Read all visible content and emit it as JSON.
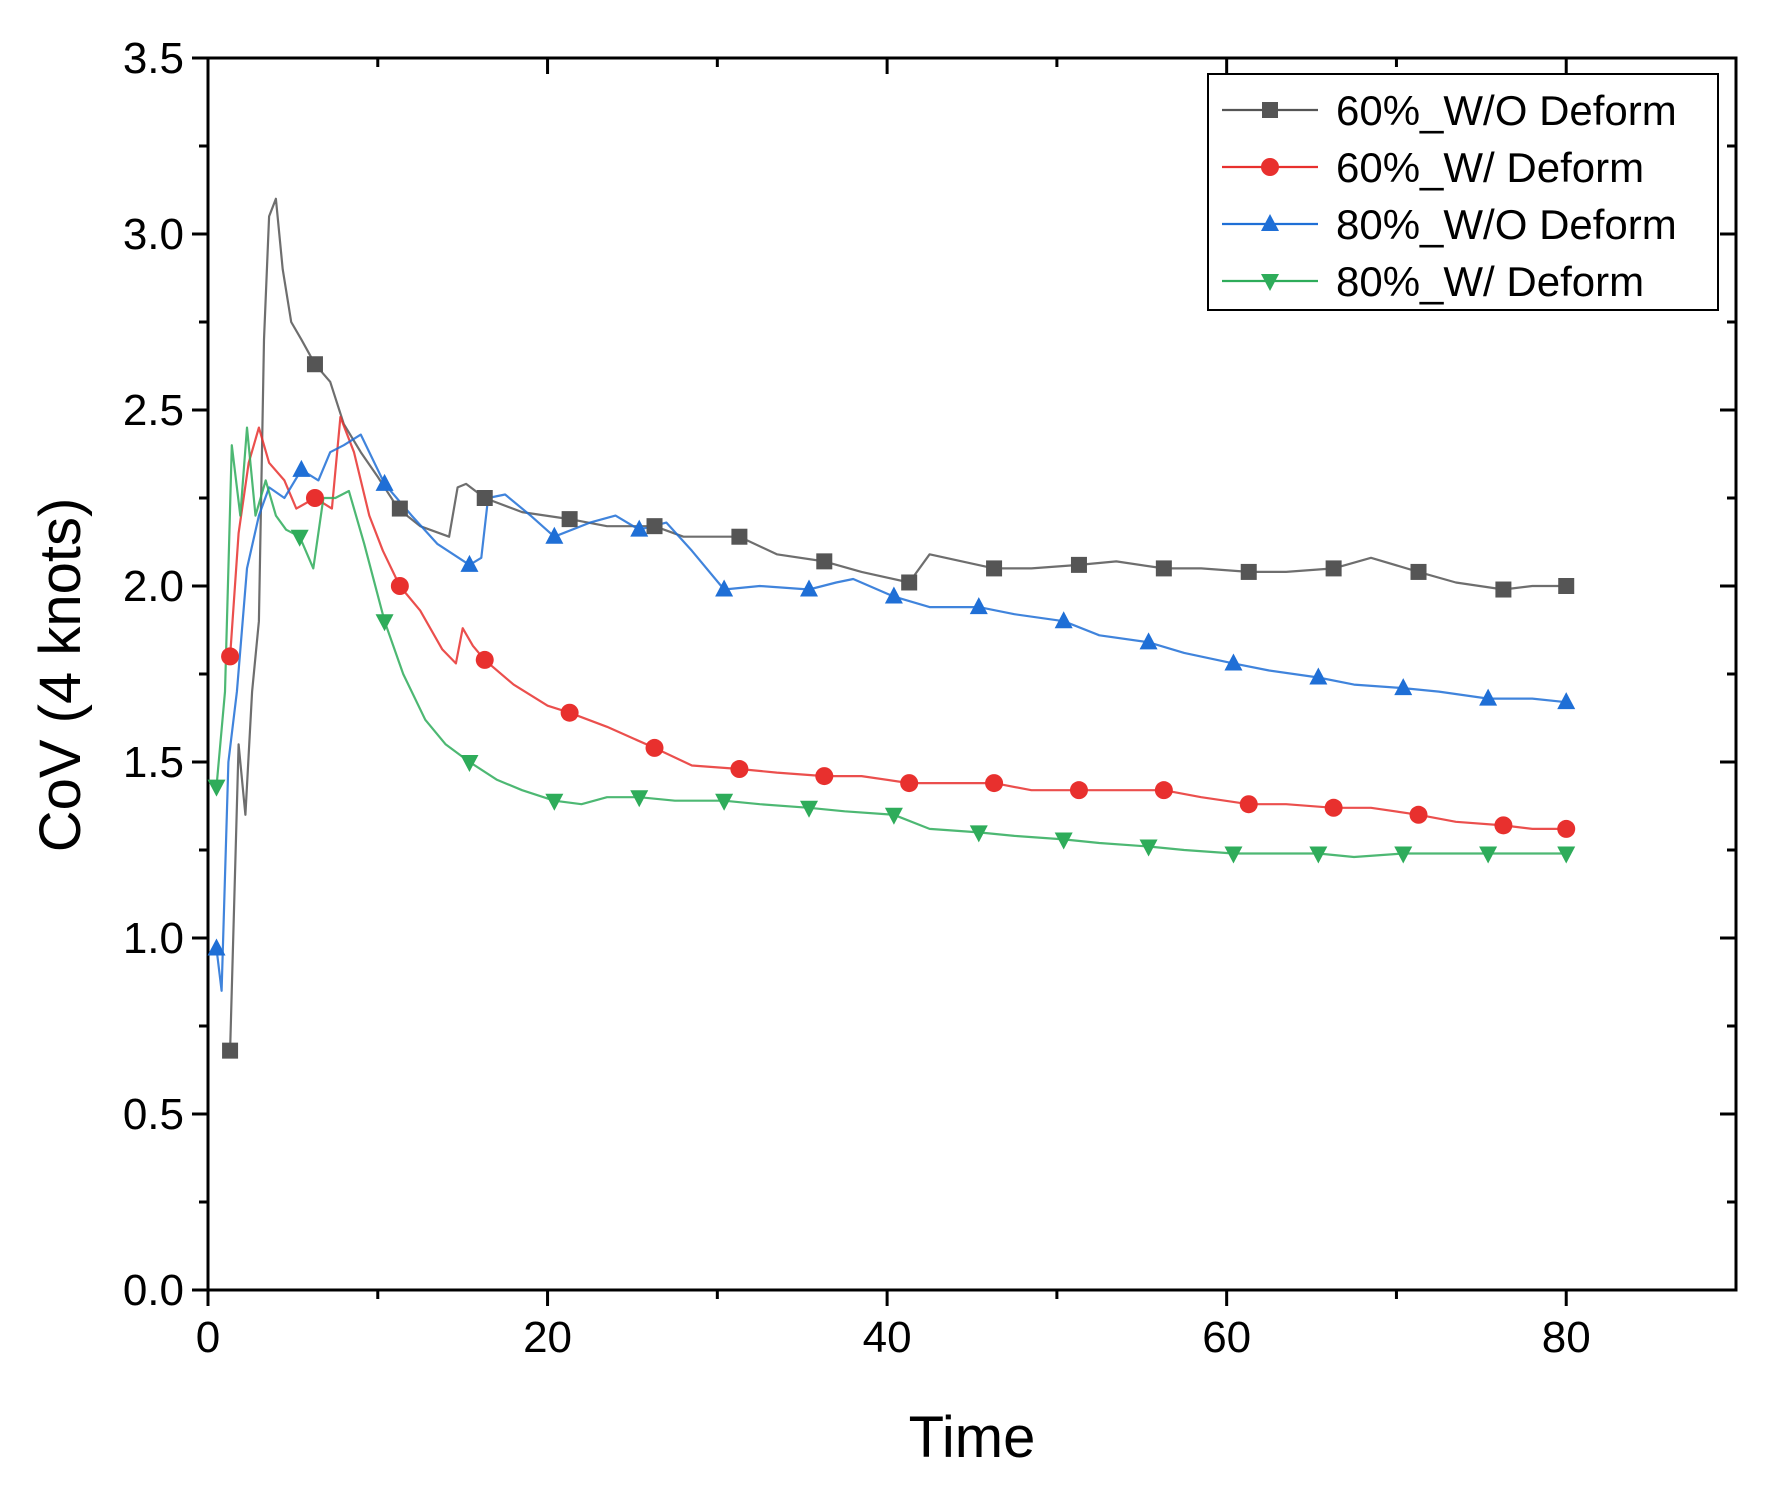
{
  "chart_data": {
    "type": "line",
    "title": "",
    "xlabel": "Time",
    "ylabel": "CoV (4 knots)",
    "xlim": [
      0,
      90
    ],
    "ylim": [
      0,
      3.5
    ],
    "x_ticks": [
      0,
      20,
      40,
      60,
      80
    ],
    "x_tick_labels": [
      "0",
      "20",
      "40",
      "60",
      "80"
    ],
    "y_ticks": [
      0,
      0.5,
      1.0,
      1.5,
      2.0,
      2.5,
      3.0,
      3.5
    ],
    "y_tick_labels": [
      "0.0",
      "0.5",
      "1.0",
      "1.5",
      "2.0",
      "2.5",
      "3.0",
      "3.5"
    ],
    "grid": false,
    "legend_position": "top-right",
    "series": [
      {
        "name": "60%_W/O Deform",
        "color": "#555555",
        "marker": "square",
        "line": [
          [
            1.3,
            0.68
          ],
          [
            1.8,
            1.55
          ],
          [
            2.2,
            1.35
          ],
          [
            2.6,
            1.7
          ],
          [
            3.0,
            1.9
          ],
          [
            3.3,
            2.7
          ],
          [
            3.6,
            3.05
          ],
          [
            4.0,
            3.1
          ],
          [
            4.4,
            2.9
          ],
          [
            4.9,
            2.75
          ],
          [
            5.5,
            2.7
          ],
          [
            6.3,
            2.63
          ],
          [
            7.2,
            2.58
          ],
          [
            8.0,
            2.46
          ],
          [
            9.0,
            2.38
          ],
          [
            10.0,
            2.31
          ],
          [
            11.2,
            2.22
          ],
          [
            12.5,
            2.17
          ],
          [
            14.2,
            2.14
          ],
          [
            14.7,
            2.28
          ],
          [
            15.2,
            2.29
          ],
          [
            16.3,
            2.25
          ],
          [
            18.5,
            2.21
          ],
          [
            21.3,
            2.19
          ],
          [
            23.5,
            2.17
          ],
          [
            26.3,
            2.17
          ],
          [
            28.0,
            2.14
          ],
          [
            31.3,
            2.14
          ],
          [
            33.5,
            2.09
          ],
          [
            36.3,
            2.07
          ],
          [
            38.5,
            2.04
          ],
          [
            41.3,
            2.01
          ],
          [
            42.5,
            2.09
          ],
          [
            46.3,
            2.05
          ],
          [
            48.5,
            2.05
          ],
          [
            51.3,
            2.06
          ],
          [
            53.5,
            2.07
          ],
          [
            56.3,
            2.05
          ],
          [
            58.5,
            2.05
          ],
          [
            61.3,
            2.04
          ],
          [
            63.5,
            2.04
          ],
          [
            66.3,
            2.05
          ],
          [
            68.5,
            2.08
          ],
          [
            71.3,
            2.04
          ],
          [
            73.5,
            2.01
          ],
          [
            76.3,
            1.99
          ],
          [
            78.0,
            2.0
          ],
          [
            80.0,
            2.0
          ]
        ],
        "markers": [
          [
            1.3,
            0.68
          ],
          [
            6.3,
            2.63
          ],
          [
            11.3,
            2.22
          ],
          [
            16.3,
            2.25
          ],
          [
            21.3,
            2.19
          ],
          [
            26.3,
            2.17
          ],
          [
            31.3,
            2.14
          ],
          [
            36.3,
            2.07
          ],
          [
            41.3,
            2.01
          ],
          [
            46.3,
            2.05
          ],
          [
            51.3,
            2.06
          ],
          [
            56.3,
            2.05
          ],
          [
            61.3,
            2.04
          ],
          [
            66.3,
            2.05
          ],
          [
            71.3,
            2.04
          ],
          [
            76.3,
            1.99
          ],
          [
            80.0,
            2.0
          ]
        ]
      },
      {
        "name": "60%_W/ Deform",
        "color": "#e8302e",
        "marker": "circle",
        "line": [
          [
            1.3,
            1.8
          ],
          [
            1.8,
            2.15
          ],
          [
            2.4,
            2.35
          ],
          [
            3.0,
            2.45
          ],
          [
            3.6,
            2.35
          ],
          [
            4.5,
            2.3
          ],
          [
            5.2,
            2.22
          ],
          [
            6.3,
            2.25
          ],
          [
            7.3,
            2.22
          ],
          [
            7.8,
            2.48
          ],
          [
            8.6,
            2.38
          ],
          [
            9.5,
            2.2
          ],
          [
            10.3,
            2.1
          ],
          [
            11.3,
            2.0
          ],
          [
            12.5,
            1.93
          ],
          [
            13.8,
            1.82
          ],
          [
            14.6,
            1.78
          ],
          [
            15.0,
            1.88
          ],
          [
            15.6,
            1.83
          ],
          [
            16.3,
            1.79
          ],
          [
            18.0,
            1.72
          ],
          [
            20.0,
            1.66
          ],
          [
            21.3,
            1.64
          ],
          [
            23.5,
            1.6
          ],
          [
            26.3,
            1.54
          ],
          [
            28.5,
            1.49
          ],
          [
            31.3,
            1.48
          ],
          [
            33.5,
            1.47
          ],
          [
            36.3,
            1.46
          ],
          [
            38.5,
            1.46
          ],
          [
            41.3,
            1.44
          ],
          [
            43.5,
            1.44
          ],
          [
            46.3,
            1.44
          ],
          [
            48.5,
            1.42
          ],
          [
            51.3,
            1.42
          ],
          [
            53.5,
            1.42
          ],
          [
            56.3,
            1.42
          ],
          [
            58.5,
            1.4
          ],
          [
            61.3,
            1.38
          ],
          [
            63.5,
            1.38
          ],
          [
            66.3,
            1.37
          ],
          [
            68.5,
            1.37
          ],
          [
            71.3,
            1.35
          ],
          [
            73.5,
            1.33
          ],
          [
            76.3,
            1.32
          ],
          [
            78.0,
            1.31
          ],
          [
            80.0,
            1.31
          ]
        ],
        "markers": [
          [
            1.3,
            1.8
          ],
          [
            6.3,
            2.25
          ],
          [
            11.3,
            2.0
          ],
          [
            16.3,
            1.79
          ],
          [
            21.3,
            1.64
          ],
          [
            26.3,
            1.54
          ],
          [
            31.3,
            1.48
          ],
          [
            36.3,
            1.46
          ],
          [
            41.3,
            1.44
          ],
          [
            46.3,
            1.44
          ],
          [
            51.3,
            1.42
          ],
          [
            56.3,
            1.42
          ],
          [
            61.3,
            1.38
          ],
          [
            66.3,
            1.37
          ],
          [
            71.3,
            1.35
          ],
          [
            76.3,
            1.32
          ],
          [
            80.0,
            1.31
          ]
        ]
      },
      {
        "name": "80%_W/O Deform",
        "color": "#1f6fd6",
        "marker": "triangle-up",
        "line": [
          [
            0.5,
            0.97
          ],
          [
            0.8,
            0.85
          ],
          [
            1.2,
            1.5
          ],
          [
            1.7,
            1.7
          ],
          [
            2.3,
            2.05
          ],
          [
            3.0,
            2.2
          ],
          [
            3.6,
            2.28
          ],
          [
            4.5,
            2.25
          ],
          [
            5.5,
            2.33
          ],
          [
            6.5,
            2.3
          ],
          [
            7.2,
            2.38
          ],
          [
            8.0,
            2.4
          ],
          [
            9.0,
            2.43
          ],
          [
            10.4,
            2.29
          ],
          [
            12.0,
            2.2
          ],
          [
            13.5,
            2.12
          ],
          [
            15.4,
            2.06
          ],
          [
            16.1,
            2.08
          ],
          [
            16.5,
            2.25
          ],
          [
            17.5,
            2.26
          ],
          [
            19.0,
            2.2
          ],
          [
            20.4,
            2.14
          ],
          [
            22.5,
            2.18
          ],
          [
            24.0,
            2.2
          ],
          [
            25.4,
            2.16
          ],
          [
            27.0,
            2.18
          ],
          [
            28.5,
            2.1
          ],
          [
            30.4,
            1.99
          ],
          [
            32.5,
            2.0
          ],
          [
            35.4,
            1.99
          ],
          [
            37.0,
            2.01
          ],
          [
            38.0,
            2.02
          ],
          [
            40.4,
            1.97
          ],
          [
            42.5,
            1.94
          ],
          [
            45.4,
            1.94
          ],
          [
            47.5,
            1.92
          ],
          [
            50.4,
            1.9
          ],
          [
            52.5,
            1.86
          ],
          [
            55.4,
            1.84
          ],
          [
            57.5,
            1.81
          ],
          [
            60.4,
            1.78
          ],
          [
            62.5,
            1.76
          ],
          [
            65.4,
            1.74
          ],
          [
            67.5,
            1.72
          ],
          [
            70.4,
            1.71
          ],
          [
            72.5,
            1.7
          ],
          [
            75.4,
            1.68
          ],
          [
            78.0,
            1.68
          ],
          [
            80.0,
            1.67
          ]
        ],
        "markers": [
          [
            0.5,
            0.97
          ],
          [
            5.5,
            2.33
          ],
          [
            10.4,
            2.29
          ],
          [
            15.4,
            2.06
          ],
          [
            20.4,
            2.14
          ],
          [
            25.4,
            2.16
          ],
          [
            30.4,
            1.99
          ],
          [
            35.4,
            1.99
          ],
          [
            40.4,
            1.97
          ],
          [
            45.4,
            1.94
          ],
          [
            50.4,
            1.9
          ],
          [
            55.4,
            1.84
          ],
          [
            60.4,
            1.78
          ],
          [
            65.4,
            1.74
          ],
          [
            70.4,
            1.71
          ],
          [
            75.4,
            1.68
          ],
          [
            80.0,
            1.67
          ]
        ]
      },
      {
        "name": "80%_W/ Deform",
        "color": "#2eac5a",
        "marker": "triangle-down",
        "line": [
          [
            0.5,
            1.43
          ],
          [
            1.0,
            1.7
          ],
          [
            1.4,
            2.4
          ],
          [
            1.9,
            2.2
          ],
          [
            2.3,
            2.45
          ],
          [
            2.8,
            2.2
          ],
          [
            3.4,
            2.3
          ],
          [
            4.0,
            2.2
          ],
          [
            4.6,
            2.16
          ],
          [
            5.4,
            2.14
          ],
          [
            6.2,
            2.05
          ],
          [
            6.8,
            2.25
          ],
          [
            7.5,
            2.25
          ],
          [
            8.3,
            2.27
          ],
          [
            9.2,
            2.12
          ],
          [
            10.4,
            1.9
          ],
          [
            11.5,
            1.75
          ],
          [
            12.8,
            1.62
          ],
          [
            14.0,
            1.55
          ],
          [
            15.4,
            1.5
          ],
          [
            17.0,
            1.45
          ],
          [
            18.5,
            1.42
          ],
          [
            20.4,
            1.39
          ],
          [
            22.0,
            1.38
          ],
          [
            23.5,
            1.4
          ],
          [
            25.4,
            1.4
          ],
          [
            27.5,
            1.39
          ],
          [
            30.4,
            1.39
          ],
          [
            32.5,
            1.38
          ],
          [
            35.4,
            1.37
          ],
          [
            37.5,
            1.36
          ],
          [
            40.4,
            1.35
          ],
          [
            42.5,
            1.31
          ],
          [
            45.4,
            1.3
          ],
          [
            47.5,
            1.29
          ],
          [
            50.4,
            1.28
          ],
          [
            52.5,
            1.27
          ],
          [
            55.4,
            1.26
          ],
          [
            57.5,
            1.25
          ],
          [
            60.4,
            1.24
          ],
          [
            62.5,
            1.24
          ],
          [
            65.4,
            1.24
          ],
          [
            67.5,
            1.23
          ],
          [
            70.4,
            1.24
          ],
          [
            72.5,
            1.24
          ],
          [
            75.4,
            1.24
          ],
          [
            78.0,
            1.24
          ],
          [
            80.0,
            1.24
          ]
        ],
        "markers": [
          [
            0.5,
            1.43
          ],
          [
            5.4,
            2.14
          ],
          [
            10.4,
            1.9
          ],
          [
            15.4,
            1.5
          ],
          [
            20.4,
            1.39
          ],
          [
            25.4,
            1.4
          ],
          [
            30.4,
            1.39
          ],
          [
            35.4,
            1.37
          ],
          [
            40.4,
            1.35
          ],
          [
            45.4,
            1.3
          ],
          [
            50.4,
            1.28
          ],
          [
            55.4,
            1.26
          ],
          [
            60.4,
            1.24
          ],
          [
            65.4,
            1.24
          ],
          [
            70.4,
            1.24
          ],
          [
            75.4,
            1.24
          ],
          [
            80.0,
            1.24
          ]
        ]
      }
    ]
  }
}
